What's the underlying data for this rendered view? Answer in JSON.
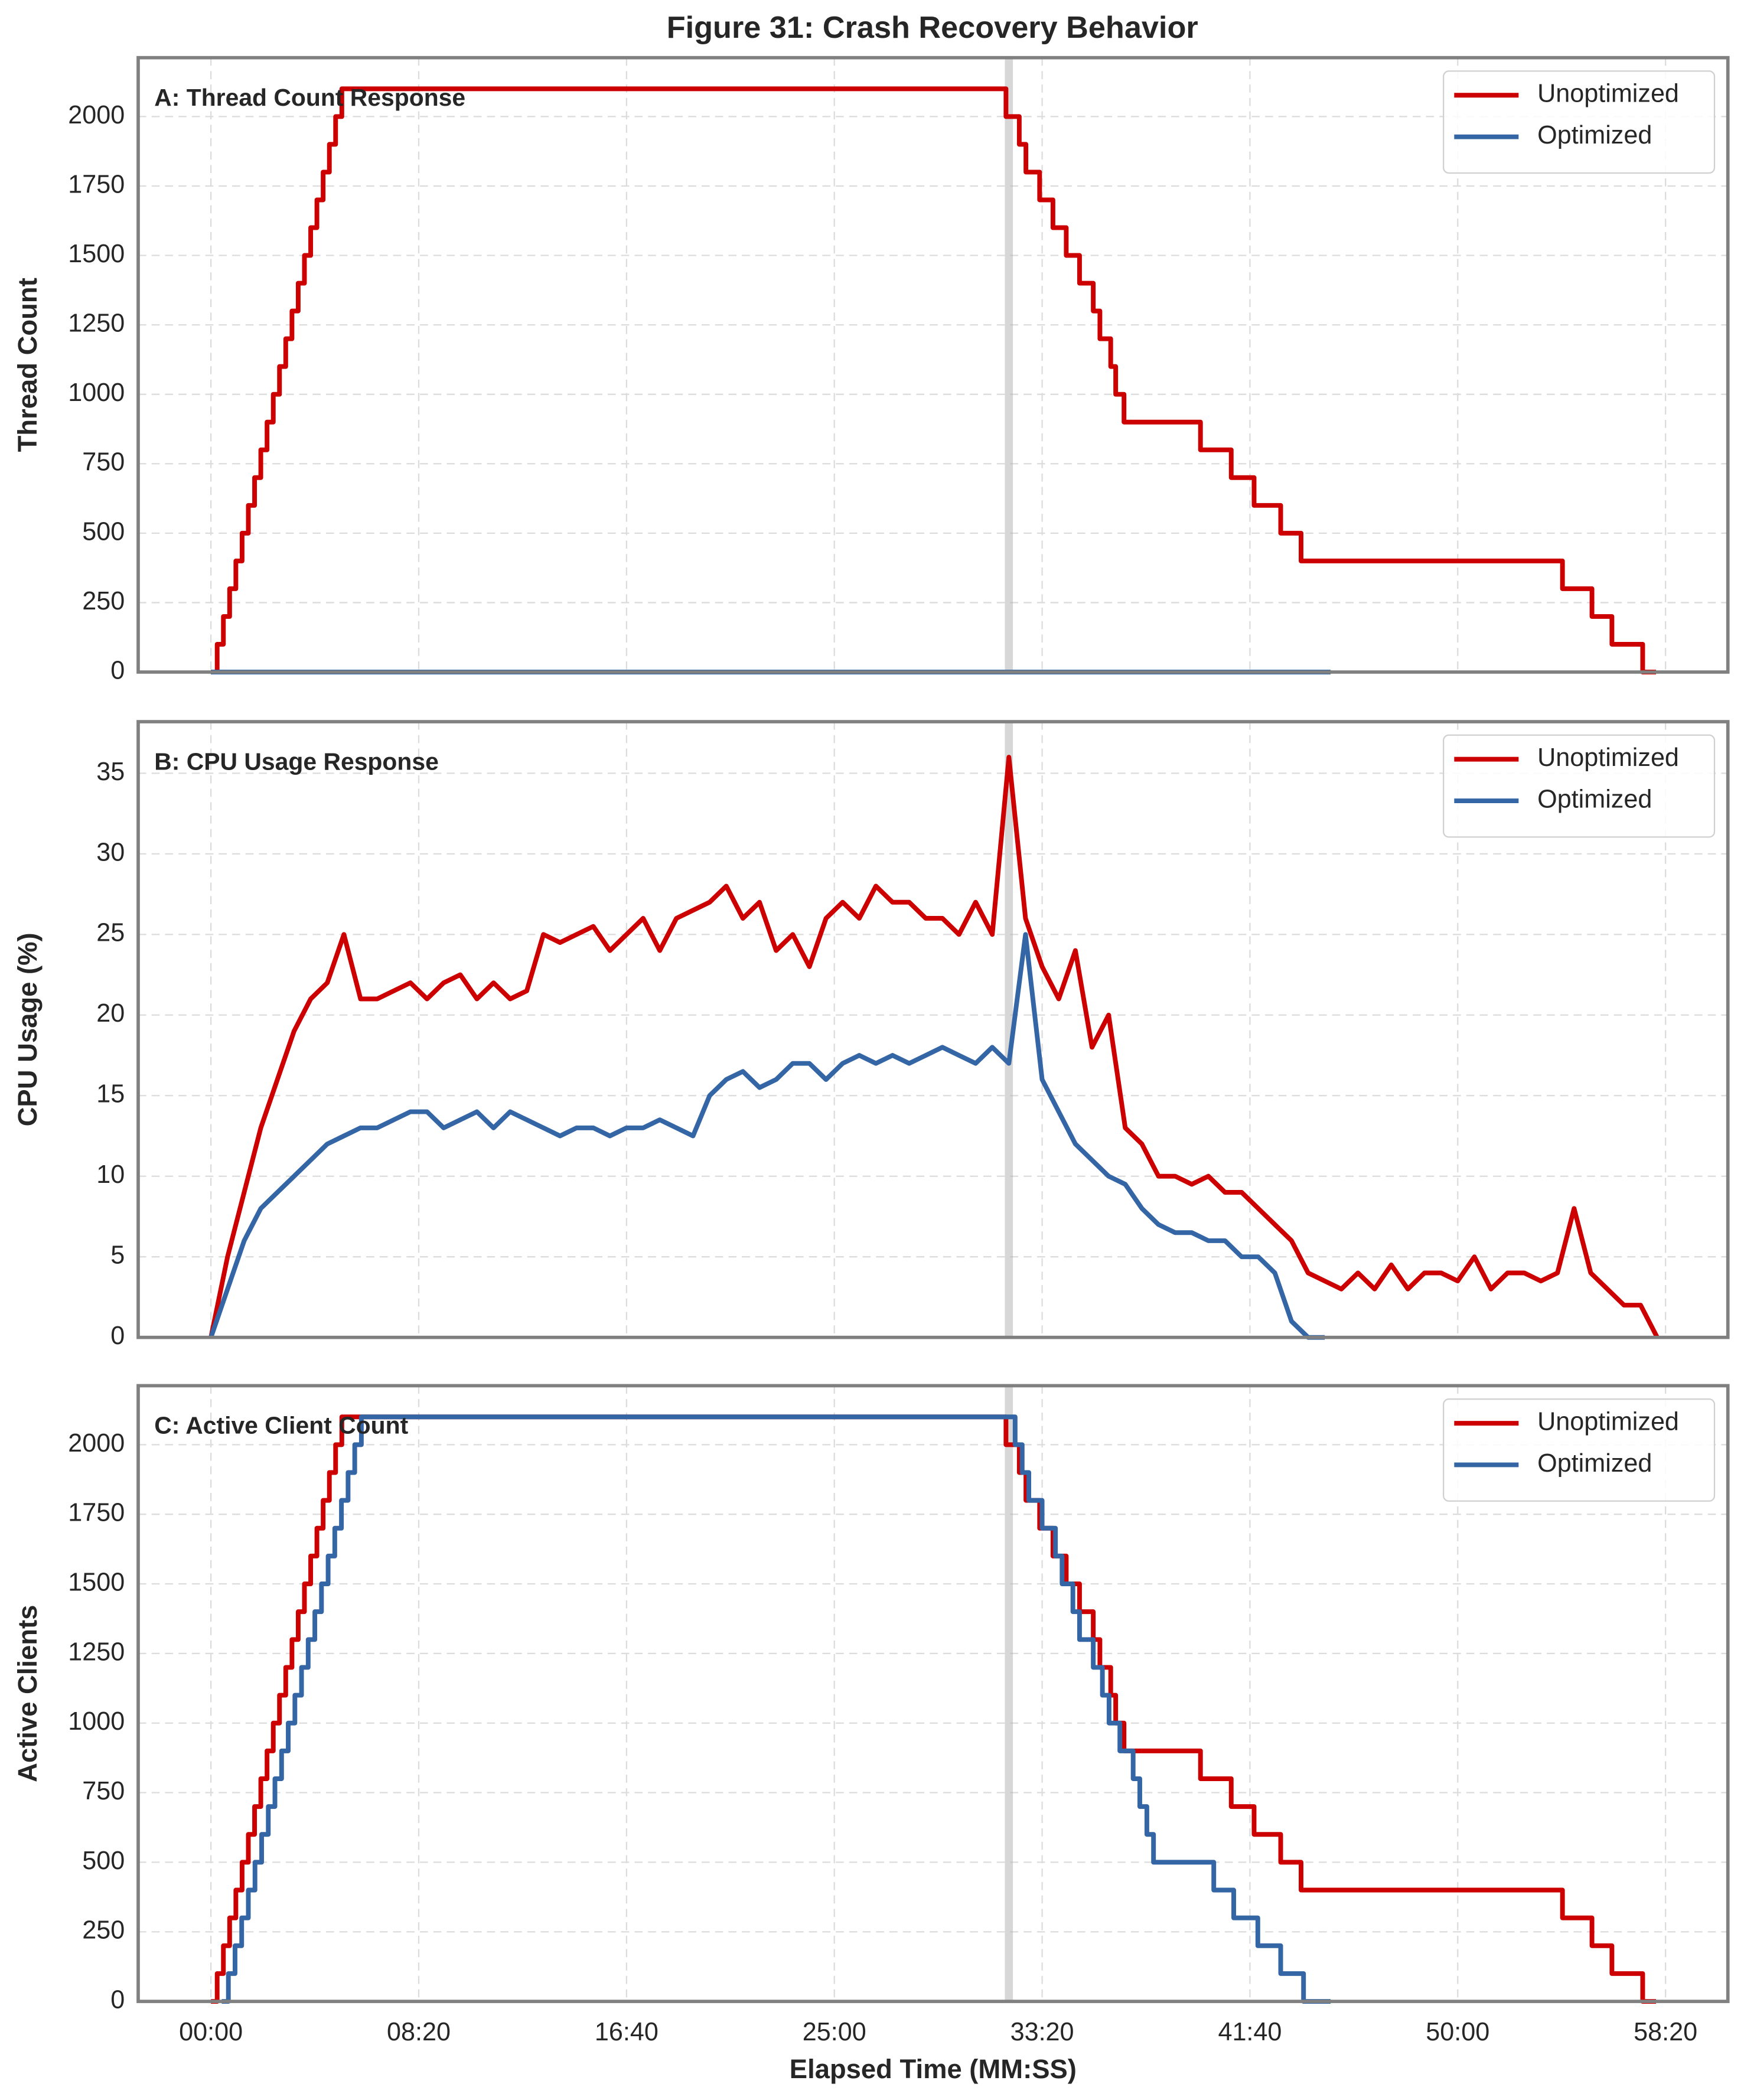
{
  "title": "Figure 31: Crash Recovery Behavior",
  "chart_data": [
    {
      "type": "line",
      "title": "A: Thread Count Response",
      "ylabel": "Thread Count",
      "step": "post",
      "xlim": [
        -175,
        3650
      ],
      "ylim": [
        0,
        2212
      ],
      "yticks": [
        0,
        250,
        500,
        750,
        1000,
        1250,
        1500,
        1750,
        2000
      ],
      "grid": true,
      "legend": "upper right",
      "vline": 1920,
      "series": [
        {
          "name": "Unoptimized",
          "color": "#cc0000",
          "x": [
            0,
            15,
            30,
            45,
            60,
            75,
            90,
            105,
            120,
            135,
            150,
            165,
            180,
            195,
            210,
            225,
            240,
            255,
            270,
            285,
            300,
            315,
            1913,
            1945,
            1961,
            1994,
            2026,
            2058,
            2090,
            2123,
            2139,
            2165,
            2177,
            2197,
            2381,
            2455,
            2510,
            2574,
            2623,
            3252,
            3323,
            3371,
            3445,
            3477
          ],
          "values": [
            0,
            100,
            200,
            300,
            400,
            500,
            600,
            700,
            800,
            900,
            1000,
            1100,
            1200,
            1300,
            1400,
            1500,
            1600,
            1700,
            1800,
            1900,
            2000,
            2100,
            2000,
            1900,
            1800,
            1700,
            1600,
            1500,
            1400,
            1300,
            1200,
            1100,
            1000,
            900,
            800,
            700,
            600,
            500,
            400,
            300,
            200,
            100,
            0,
            0
          ]
        },
        {
          "name": "Optimized",
          "color": "#3465a4",
          "x": [
            0,
            2694
          ],
          "values": [
            0,
            0
          ]
        }
      ]
    },
    {
      "type": "line",
      "title": "B: CPU Usage Response",
      "ylabel": "CPU Usage (%)",
      "xlim": [
        -175,
        3650
      ],
      "ylim": [
        0,
        38.2
      ],
      "yticks": [
        0,
        5,
        10,
        15,
        20,
        25,
        30,
        35
      ],
      "grid": true,
      "legend": "upper right",
      "vline": 1920,
      "x": [
        0,
        40,
        80,
        120,
        160,
        200,
        240,
        280,
        320,
        360,
        400,
        440,
        480,
        520,
        560,
        600,
        640,
        680,
        720,
        760,
        800,
        840,
        880,
        920,
        960,
        1000,
        1040,
        1080,
        1120,
        1160,
        1200,
        1240,
        1280,
        1320,
        1360,
        1400,
        1440,
        1480,
        1520,
        1560,
        1600,
        1640,
        1680,
        1720,
        1760,
        1800,
        1840,
        1880,
        1920,
        1960,
        2000,
        2040,
        2080,
        2120,
        2160,
        2200,
        2240,
        2280,
        2320,
        2360,
        2400,
        2440,
        2480,
        2520,
        2560,
        2600,
        2640,
        2680,
        2720,
        2760,
        2800,
        2840,
        2880,
        2920,
        2960,
        3000,
        3040,
        3080,
        3120,
        3160,
        3200,
        3240,
        3280,
        3320,
        3360,
        3400,
        3440,
        3480
      ],
      "series": [
        {
          "name": "Unoptimized",
          "color": "#cc0000",
          "values": [
            0,
            5,
            9,
            13,
            16,
            19,
            21,
            22,
            25,
            21,
            21,
            21.5,
            22,
            21,
            22,
            22.5,
            21,
            22,
            21,
            21.5,
            25,
            24.5,
            25,
            25.5,
            24,
            25,
            26,
            24,
            26,
            26.5,
            27,
            28,
            26,
            27,
            24,
            25,
            23,
            26,
            27,
            26,
            28,
            27,
            27,
            26,
            26,
            25,
            27,
            25,
            36,
            26,
            23,
            21,
            24,
            18,
            20,
            13,
            12,
            10,
            10,
            9.5,
            10,
            9,
            9,
            8,
            7,
            6,
            4,
            3.5,
            3,
            4,
            3,
            4.5,
            3,
            4,
            4,
            3.5,
            5,
            3,
            4,
            4,
            3.5,
            4,
            8,
            4,
            3,
            2,
            2,
            0
          ]
        },
        {
          "name": "Optimized",
          "color": "#3465a4",
          "values": [
            0,
            3,
            6,
            8,
            9,
            10,
            11,
            12,
            12.5,
            13,
            13,
            13.5,
            14,
            14,
            13,
            13.5,
            14,
            13,
            14,
            13.5,
            13,
            12.5,
            13,
            13,
            12.5,
            13,
            13,
            13.5,
            13,
            12.5,
            15,
            16,
            16.5,
            15.5,
            16,
            17,
            17,
            16,
            17,
            17.5,
            17,
            17.5,
            17,
            17.5,
            18,
            17.5,
            17,
            18,
            17,
            25,
            16,
            14,
            12,
            11,
            10,
            9.5,
            8,
            7,
            6.5,
            6.5,
            6,
            6,
            5,
            5,
            4,
            1,
            0,
            0,
            null,
            null,
            null,
            null,
            null,
            null,
            null,
            null,
            null,
            null,
            null,
            null,
            null,
            null,
            null,
            null,
            null,
            null,
            null,
            null
          ]
        }
      ]
    },
    {
      "type": "line",
      "title": "C: Active Client Count",
      "ylabel": "Active Clients",
      "xlabel": "Elapsed Time (MM:SS)",
      "step": "post",
      "xlim": [
        -175,
        3650
      ],
      "ylim": [
        0,
        2212
      ],
      "yticks": [
        0,
        250,
        500,
        750,
        1000,
        1250,
        1500,
        1750,
        2000
      ],
      "xticks": [
        {
          "value": 0,
          "label": "00:00"
        },
        {
          "value": 500,
          "label": "08:20"
        },
        {
          "value": 1000,
          "label": "16:40"
        },
        {
          "value": 1500,
          "label": "25:00"
        },
        {
          "value": 2000,
          "label": "33:20"
        },
        {
          "value": 2500,
          "label": "41:40"
        },
        {
          "value": 3000,
          "label": "50:00"
        },
        {
          "value": 3500,
          "label": "58:20"
        }
      ],
      "grid": true,
      "legend": "upper right",
      "vline": 1920,
      "series": [
        {
          "name": "Unoptimized",
          "color": "#cc0000",
          "x": [
            0,
            15,
            30,
            45,
            60,
            75,
            90,
            105,
            120,
            135,
            150,
            165,
            180,
            195,
            210,
            225,
            240,
            255,
            270,
            285,
            300,
            315,
            1913,
            1945,
            1961,
            1994,
            2026,
            2058,
            2090,
            2123,
            2139,
            2165,
            2177,
            2197,
            2381,
            2455,
            2510,
            2574,
            2623,
            3252,
            3323,
            3371,
            3445,
            3477
          ],
          "values": [
            0,
            100,
            200,
            300,
            400,
            500,
            600,
            700,
            800,
            900,
            1000,
            1100,
            1200,
            1300,
            1400,
            1500,
            1600,
            1700,
            1800,
            1900,
            2000,
            2100,
            2000,
            1900,
            1800,
            1700,
            1600,
            1500,
            1400,
            1300,
            1200,
            1100,
            1000,
            900,
            800,
            700,
            600,
            500,
            400,
            300,
            200,
            100,
            0,
            0
          ]
        },
        {
          "name": "Optimized",
          "color": "#3465a4",
          "x": [
            26,
            42,
            58,
            74,
            90,
            106,
            122,
            138,
            154,
            170,
            186,
            202,
            218,
            234,
            250,
            266,
            282,
            298,
            314,
            330,
            346,
            362,
            1935,
            1952,
            1968,
            2000,
            2032,
            2048,
            2074,
            2090,
            2123,
            2145,
            2161,
            2187,
            2219,
            2235,
            2252,
            2268,
            2413,
            2461,
            2519,
            2574,
            2629,
            2694
          ],
          "values": [
            0,
            100,
            200,
            300,
            400,
            500,
            600,
            700,
            800,
            900,
            1000,
            1100,
            1200,
            1300,
            1400,
            1500,
            1600,
            1700,
            1800,
            1900,
            2000,
            2100,
            2000,
            1900,
            1800,
            1700,
            1600,
            1500,
            1400,
            1300,
            1200,
            1100,
            1000,
            900,
            800,
            700,
            600,
            500,
            400,
            300,
            200,
            100,
            0,
            0
          ]
        }
      ]
    }
  ]
}
